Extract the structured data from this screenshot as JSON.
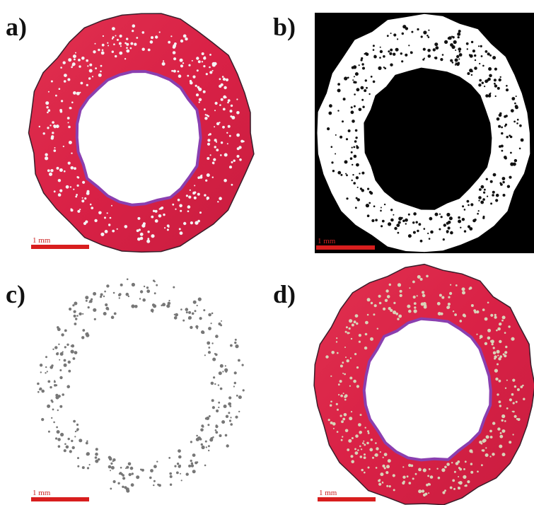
{
  "panels": [
    {
      "label": "a)",
      "scale_bar": "1 mm"
    },
    {
      "label": "b)",
      "scale_bar": "1 mm"
    },
    {
      "label": "c)",
      "scale_bar": "1 mm"
    },
    {
      "label": "d)",
      "scale_bar": "1 mm"
    }
  ]
}
